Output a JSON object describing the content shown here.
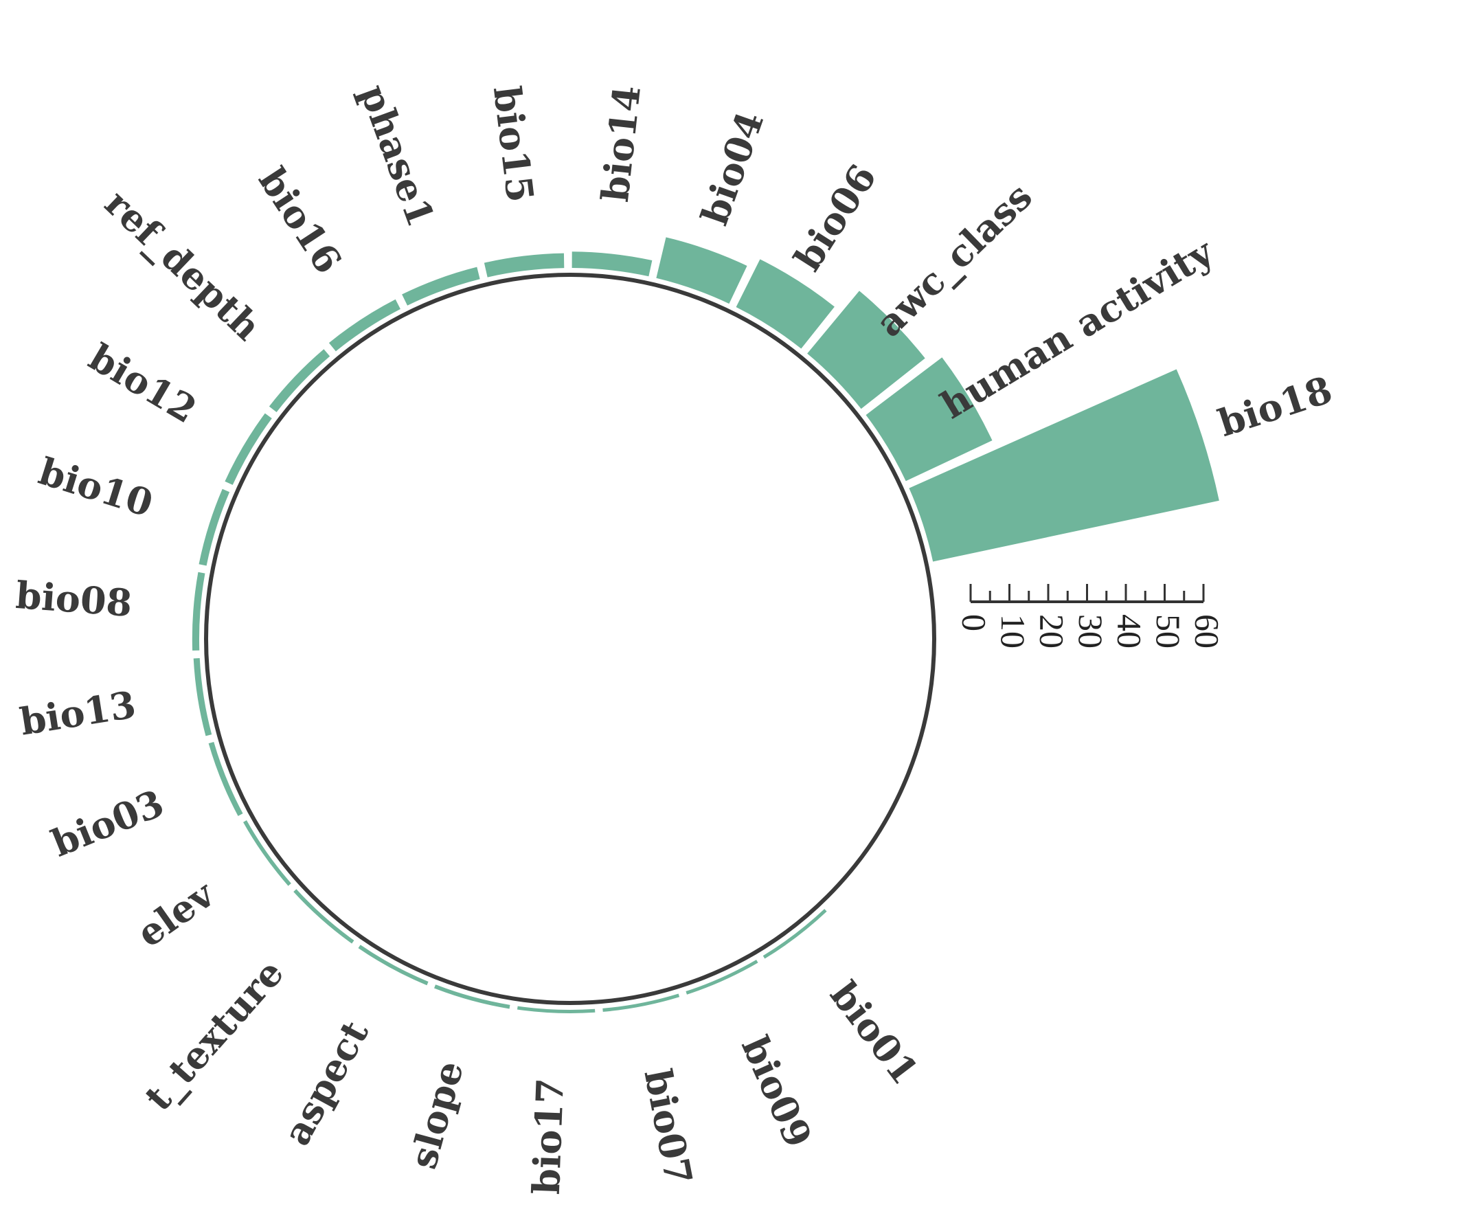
{
  "chart_data": {
    "type": "circular-bar",
    "title": "",
    "bar_color": "#6fb59b",
    "ring_color": "#3a3a3a",
    "scale_ticks": [
      "0",
      "10",
      "20",
      "30",
      "40",
      "50",
      "60"
    ],
    "scale_range": [
      0,
      60
    ],
    "categories": [
      {
        "label": "bio18",
        "value": 37.7
      },
      {
        "label": "human activity",
        "value": 12.3
      },
      {
        "label": "awc_class",
        "value": 10.5
      },
      {
        "label": "bio06",
        "value": 6.9
      },
      {
        "label": "bio04",
        "value": 5.4
      },
      {
        "label": "bio14",
        "value": 2.1
      },
      {
        "label": "bio15",
        "value": 1.9
      },
      {
        "label": "phase1",
        "value": 1.6
      },
      {
        "label": "bio16",
        "value": 1.4
      },
      {
        "label": "ref_depth",
        "value": 1.2
      },
      {
        "label": "bio12",
        "value": 1.1
      },
      {
        "label": "bio10",
        "value": 1.0
      },
      {
        "label": "bio08",
        "value": 0.9
      },
      {
        "label": "bio13",
        "value": 0.8
      },
      {
        "label": "bio03",
        "value": 0.7
      },
      {
        "label": "elev",
        "value": 0.5
      },
      {
        "label": "t_texture",
        "value": 0.5
      },
      {
        "label": "aspect",
        "value": 0.5
      },
      {
        "label": "slope",
        "value": 0.5
      },
      {
        "label": "bio17",
        "value": 0.4
      },
      {
        "label": "bio07",
        "value": 0.3
      },
      {
        "label": "bio09",
        "value": 0.3
      },
      {
        "label": "bio01",
        "value": 0.3
      }
    ]
  }
}
